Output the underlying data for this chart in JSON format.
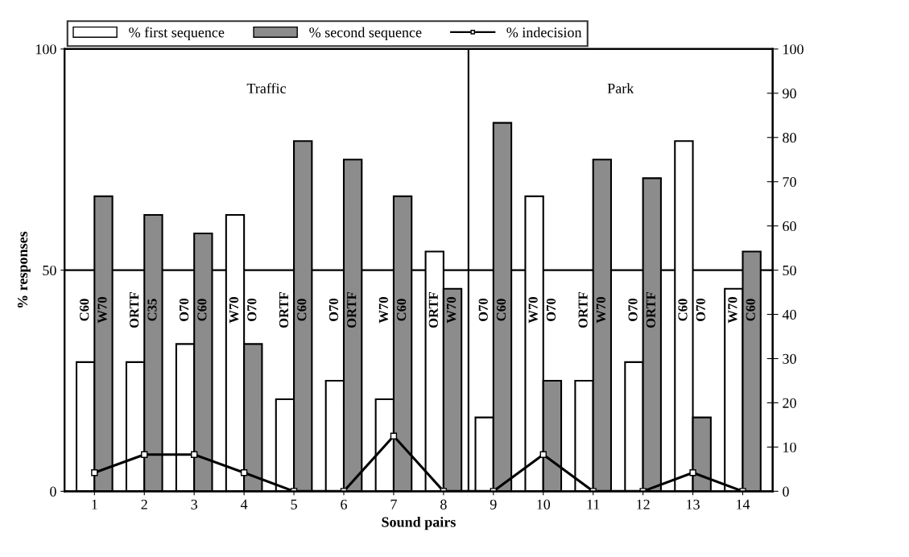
{
  "chart_data": {
    "type": "bar",
    "xlabel": "Sound pairs",
    "ylabel": "% responses",
    "categories": [
      "1",
      "2",
      "3",
      "4",
      "5",
      "6",
      "7",
      "8",
      "9",
      "10",
      "11",
      "12",
      "13",
      "14"
    ],
    "series": [
      {
        "name": "% first sequence",
        "color": "#ffffff",
        "values": [
          29.2,
          29.2,
          33.3,
          62.5,
          20.8,
          25,
          20.8,
          54.2,
          16.7,
          66.7,
          25,
          29.2,
          79.2,
          45.8
        ]
      },
      {
        "name": "% second sequence",
        "color": "#8c8c8c",
        "values": [
          66.7,
          62.5,
          58.3,
          33.3,
          79.2,
          75,
          66.7,
          45.8,
          83.3,
          25,
          75,
          70.8,
          16.7,
          54.2
        ]
      },
      {
        "name": "% indecision",
        "type": "line",
        "color": "#000000",
        "marker": "square",
        "values": [
          4.2,
          8.3,
          8.3,
          4.2,
          0,
          0,
          12.5,
          0,
          0,
          8.3,
          0,
          0,
          4.2,
          0
        ]
      }
    ],
    "ylim": [
      0,
      100
    ],
    "yticks": [
      0,
      50,
      100
    ],
    "y2lim": [
      0,
      100
    ],
    "y2ticks": [
      0,
      10,
      20,
      30,
      40,
      50,
      60,
      70,
      80,
      90,
      100
    ],
    "legend": "top left",
    "ref_lines": [
      {
        "axis": "y",
        "value": 50
      }
    ],
    "annotations": [
      "Traffic",
      "Park",
      {
        "text": "C60",
        "x": "1",
        "y": 41
      },
      {
        "text": "W70",
        "x": "1",
        "y": 41
      },
      {
        "text": "ORTF",
        "x": "2",
        "y": 41
      },
      {
        "text": "C35",
        "x": "2",
        "y": 41
      },
      {
        "text": "O70",
        "x": "3",
        "y": 41
      },
      {
        "text": "C60",
        "x": "3",
        "y": 41
      },
      {
        "text": "W70",
        "x": "4",
        "y": 41
      },
      {
        "text": "O70",
        "x": "4",
        "y": 41
      },
      {
        "text": "ORTF",
        "x": "5",
        "y": 41
      },
      {
        "text": "C60",
        "x": "5",
        "y": 41
      },
      {
        "text": "O70",
        "x": "6",
        "y": 41
      },
      {
        "text": "ORTF",
        "x": "6",
        "y": 41
      },
      {
        "text": "W70",
        "x": "7",
        "y": 41
      },
      {
        "text": "C60",
        "x": "7",
        "y": 41
      },
      {
        "text": "ORTF",
        "x": "8",
        "y": 41
      },
      {
        "text": "W70",
        "x": "8",
        "y": 41
      },
      {
        "text": "O70",
        "x": "9",
        "y": 41
      },
      {
        "text": "C60",
        "x": "9",
        "y": 41
      },
      {
        "text": "W70",
        "x": "10",
        "y": 41
      },
      {
        "text": "O70",
        "x": "10",
        "y": 41
      },
      {
        "text": "ORTF",
        "x": "11",
        "y": 41
      },
      {
        "text": "W70",
        "x": "11",
        "y": 41
      },
      {
        "text": "O70",
        "x": "12",
        "y": 41
      },
      {
        "text": "ORTF",
        "x": "12",
        "y": 41
      },
      {
        "text": "C60",
        "x": "13",
        "y": 41
      },
      {
        "text": "O70",
        "x": "13",
        "y": 41
      },
      {
        "text": "W70",
        "x": "14",
        "y": 41
      },
      {
        "text": "C60",
        "x": "14",
        "y": 41
      }
    ]
  }
}
